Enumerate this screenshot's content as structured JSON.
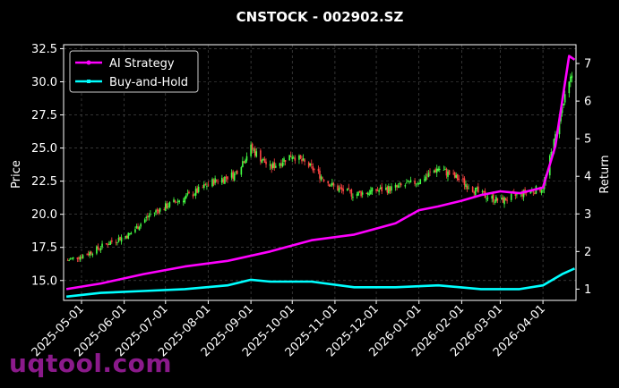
{
  "chart_data": {
    "type": "candlestick+line",
    "title": "CNSTOCK - 002902.SZ",
    "ylabel_left": "Price",
    "ylabel_right": "Return",
    "ylim_left": [
      13.5,
      32.8
    ],
    "ylim_right": [
      0.7,
      7.5
    ],
    "yticks_left": [
      "15.0",
      "17.5",
      "20.0",
      "22.5",
      "25.0",
      "27.5",
      "30.0",
      "32.5"
    ],
    "yticks_right": [
      "1",
      "2",
      "3",
      "4",
      "5",
      "6",
      "7"
    ],
    "xticks": [
      "2025-05-01",
      "2025-06-01",
      "2025-07-01",
      "2025-08-01",
      "2025-09-01",
      "2025-10-01",
      "2025-11-01",
      "2025-12-01",
      "2026-01-01",
      "2026-02-01",
      "2026-03-01",
      "2026-04-01"
    ],
    "x_range": [
      "2025-04-18",
      "2026-04-25"
    ],
    "grid": true,
    "legend_position": "top-left",
    "up_color": "#44ff44",
    "down_color": "#ff4444",
    "price_series": {
      "x": [
        "2025-04-20",
        "2025-05-05",
        "2025-05-20",
        "2025-06-05",
        "2025-06-20",
        "2025-07-05",
        "2025-07-20",
        "2025-08-05",
        "2025-08-20",
        "2025-09-01",
        "2025-09-15",
        "2025-10-01",
        "2025-10-15",
        "2025-11-01",
        "2025-11-15",
        "2025-12-01",
        "2025-12-15",
        "2026-01-01",
        "2026-01-15",
        "2026-02-01",
        "2026-02-15",
        "2026-03-01",
        "2026-03-15",
        "2026-04-01",
        "2026-04-15",
        "2026-04-22"
      ],
      "close": [
        16.5,
        17.0,
        17.8,
        18.5,
        20.0,
        20.8,
        21.5,
        22.5,
        23.0,
        25.0,
        23.5,
        24.5,
        23.5,
        22.0,
        21.5,
        21.8,
        22.0,
        22.5,
        23.5,
        22.5,
        21.5,
        21.0,
        21.5,
        22.0,
        28.0,
        30.5
      ]
    },
    "series": [
      {
        "name": "AI Strategy",
        "color": "#ff00ff",
        "x": [
          "2025-04-20",
          "2025-05-15",
          "2025-06-15",
          "2025-07-15",
          "2025-08-15",
          "2025-09-15",
          "2025-10-15",
          "2025-11-15",
          "2025-12-15",
          "2026-01-01",
          "2026-01-15",
          "2026-02-01",
          "2026-02-15",
          "2026-03-01",
          "2026-03-15",
          "2026-04-01",
          "2026-04-10",
          "2026-04-20",
          "2026-04-24"
        ],
        "values": [
          1.0,
          1.15,
          1.4,
          1.6,
          1.75,
          2.0,
          2.3,
          2.45,
          2.75,
          3.1,
          3.2,
          3.35,
          3.5,
          3.6,
          3.55,
          3.7,
          4.8,
          7.2,
          7.1
        ]
      },
      {
        "name": "Buy-and-Hold",
        "color": "#00ffff",
        "x": [
          "2025-04-20",
          "2025-05-15",
          "2025-06-15",
          "2025-07-15",
          "2025-08-15",
          "2025-09-01",
          "2025-09-15",
          "2025-10-15",
          "2025-11-15",
          "2025-12-15",
          "2026-01-15",
          "2026-02-15",
          "2026-03-15",
          "2026-04-01",
          "2026-04-15",
          "2026-04-24"
        ],
        "values": [
          0.8,
          0.9,
          0.95,
          1.0,
          1.1,
          1.25,
          1.2,
          1.2,
          1.05,
          1.05,
          1.1,
          1.0,
          1.0,
          1.1,
          1.4,
          1.55
        ]
      }
    ]
  },
  "watermark": "uqtool.com"
}
